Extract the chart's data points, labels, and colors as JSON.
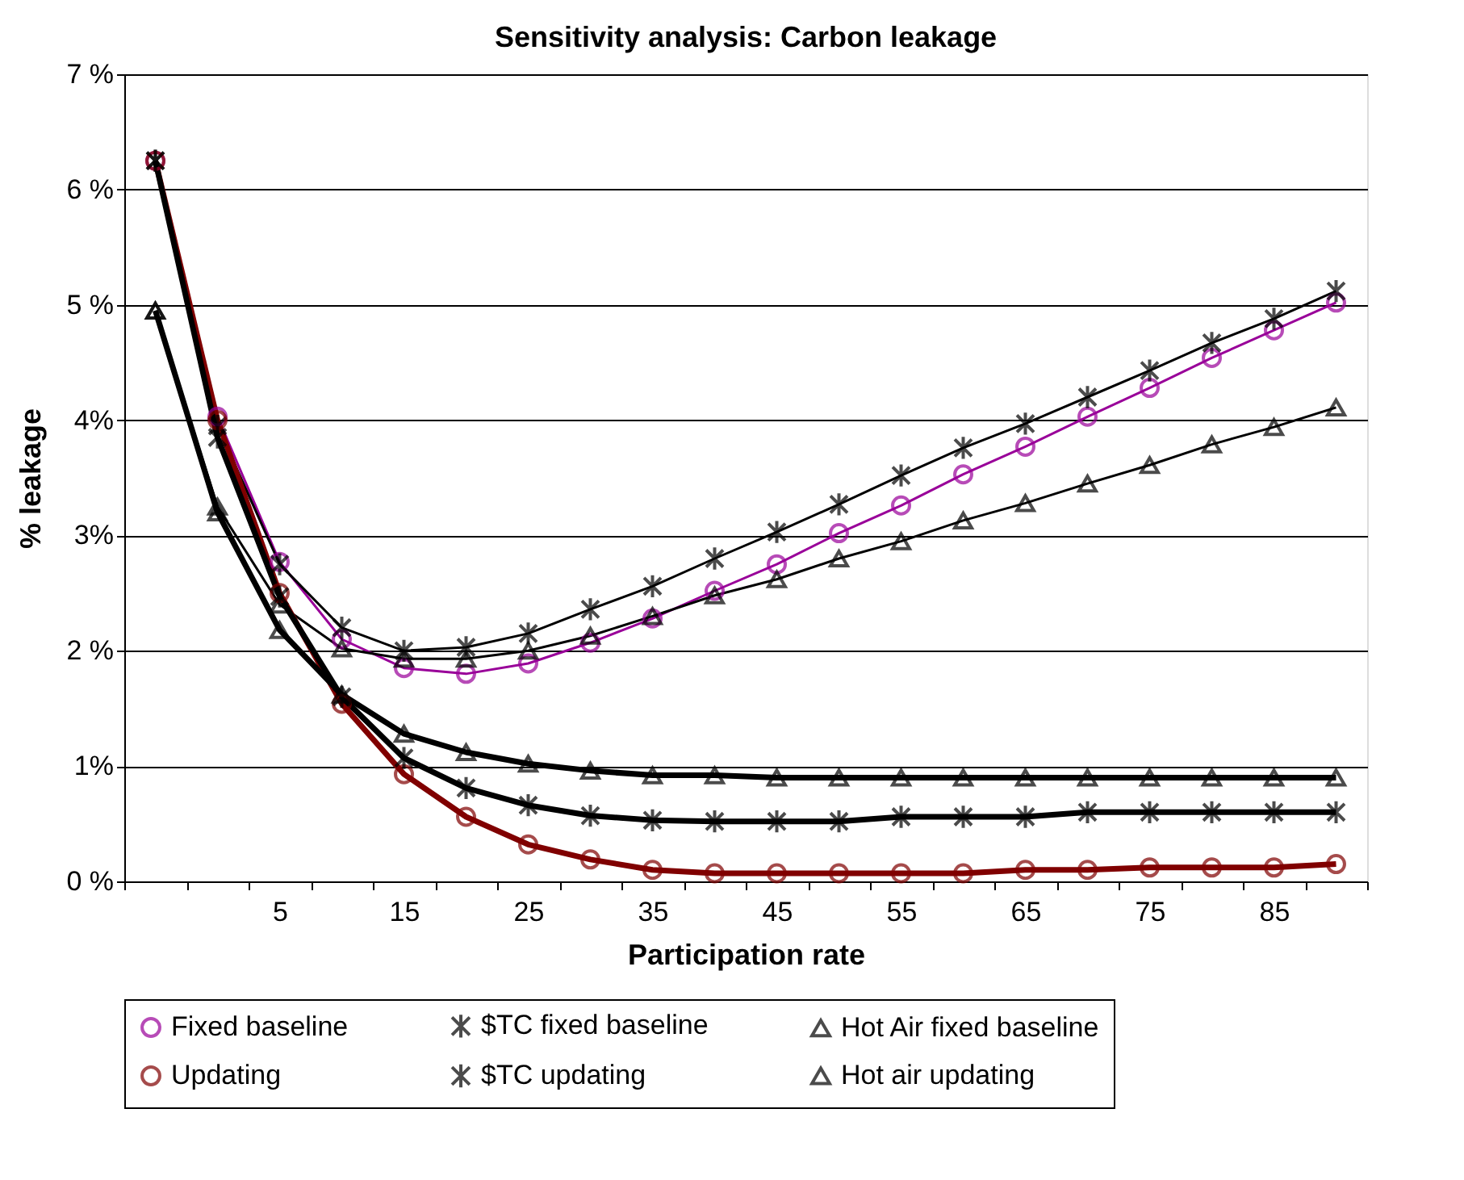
{
  "chart_data": {
    "type": "line",
    "title": "Sensitivity analysis: Carbon leakage",
    "xlabel": "Participation rate",
    "ylabel": "% leakage",
    "categories": [
      null,
      null,
      "5",
      null,
      "15",
      null,
      "25",
      null,
      "35",
      null,
      "45",
      null,
      "55",
      null,
      "65",
      null,
      "75",
      null,
      "85",
      null
    ],
    "ylim": [
      0,
      7
    ],
    "yticks": [
      {
        "value": 0,
        "label": "0 %"
      },
      {
        "value": 1,
        "label": "1%"
      },
      {
        "value": 2,
        "label": "2 %"
      },
      {
        "value": 3,
        "label": "3%"
      },
      {
        "value": 4,
        "label": "4%"
      },
      {
        "value": 5,
        "label": "5 %"
      },
      {
        "value": 6,
        "label": "6 %"
      },
      {
        "value": 7,
        "label": "7 %"
      }
    ],
    "grid": "y",
    "legend": "bottom",
    "series": [
      {
        "name": "Fixed baseline",
        "color": "#990099",
        "marker": "circle",
        "values": [
          6.25,
          4.03,
          2.77,
          2.1,
          1.85,
          1.8,
          1.89,
          2.07,
          2.28,
          2.52,
          2.75,
          3.02,
          3.26,
          3.53,
          3.77,
          4.03,
          4.28,
          4.54,
          4.78,
          5.02
        ]
      },
      {
        "name": "$TC fixed baseline",
        "color": "#000000",
        "marker": "cross",
        "values": [
          6.25,
          3.95,
          2.75,
          2.2,
          2.0,
          2.03,
          2.15,
          2.36,
          2.56,
          2.8,
          3.03,
          3.27,
          3.52,
          3.76,
          3.97,
          4.2,
          4.43,
          4.67,
          4.88,
          5.12
        ]
      },
      {
        "name": "Hot Air fixed baseline",
        "color": "#000000",
        "marker": "triangle",
        "values": [
          4.95,
          3.25,
          2.4,
          2.02,
          1.93,
          1.93,
          2.0,
          2.13,
          2.3,
          2.48,
          2.62,
          2.8,
          2.95,
          3.13,
          3.28,
          3.45,
          3.61,
          3.79,
          3.94,
          4.11
        ]
      },
      {
        "name": "Updating",
        "color": "#800000",
        "marker": "circle",
        "values": [
          6.25,
          4.0,
          2.5,
          1.54,
          0.93,
          0.56,
          0.32,
          0.19,
          0.1,
          0.07,
          0.07,
          0.07,
          0.07,
          0.07,
          0.1,
          0.1,
          0.12,
          0.12,
          0.12,
          0.15
        ]
      },
      {
        "name": "$TC updating",
        "color": "#000000",
        "marker": "cross",
        "values": [
          6.25,
          3.85,
          2.47,
          1.6,
          1.07,
          0.81,
          0.66,
          0.57,
          0.53,
          0.52,
          0.52,
          0.52,
          0.56,
          0.56,
          0.56,
          0.6,
          0.6,
          0.6,
          0.6,
          0.6
        ]
      },
      {
        "name": "Hot air updating",
        "color": "#000000",
        "marker": "triangle",
        "values": [
          4.95,
          3.2,
          2.18,
          1.62,
          1.28,
          1.12,
          1.02,
          0.96,
          0.92,
          0.92,
          0.9,
          0.9,
          0.9,
          0.9,
          0.9,
          0.9,
          0.9,
          0.9,
          0.9,
          0.9
        ]
      }
    ]
  }
}
